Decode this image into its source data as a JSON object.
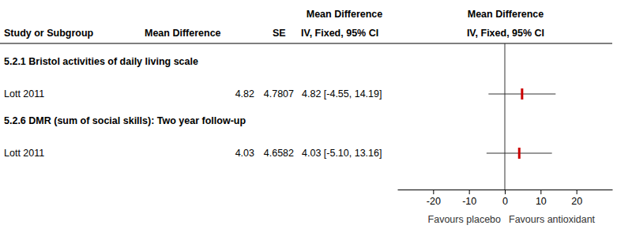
{
  "chart_data": {
    "type": "forest",
    "header_top": [
      "Mean Difference",
      "Mean Difference"
    ],
    "columns": [
      "Study or Subgroup",
      "Mean Difference",
      "SE",
      "IV, Fixed, 95% CI",
      "IV, Fixed, 95% CI"
    ],
    "subgroups": [
      {
        "title": "5.2.1 Bristol activities of daily living scale",
        "studies": [
          {
            "study": "Lott 2011",
            "mean_difference": 4.82,
            "se": 4.7807,
            "ci_lower": -4.55,
            "ci_upper": 14.19,
            "ci_label": "4.82 [-4.55, 14.19]"
          }
        ]
      },
      {
        "title": "5.2.6 DMR (sum of social skills): Two year follow-up",
        "studies": [
          {
            "study": "Lott 2011",
            "mean_difference": 4.03,
            "se": 4.6582,
            "ci_lower": -5.1,
            "ci_upper": 13.16,
            "ci_label": "4.03 [-5.10, 13.16]"
          }
        ]
      }
    ],
    "null_line": 0,
    "xlim": [
      -30,
      30
    ],
    "xticks": [
      -20,
      -10,
      0,
      10,
      20
    ],
    "x_left_label": "Favours placebo",
    "x_right_label": "Favours antioxidant",
    "color": "#cc0000"
  }
}
